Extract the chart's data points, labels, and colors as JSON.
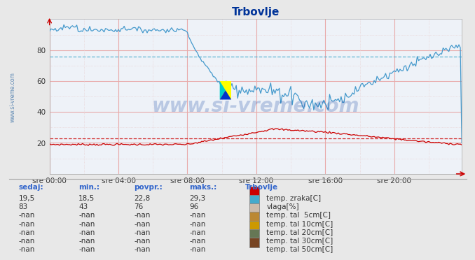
{
  "title": "Trbovlje",
  "bg_color": "#e8e8e8",
  "plot_bg_color": "#eef2f8",
  "ylim": [
    0,
    100
  ],
  "yticks": [
    20,
    40,
    60,
    80
  ],
  "tick_labels_x": [
    "sre 00:00",
    "sre 04:00",
    "sre 08:00",
    "sre 12:00",
    "sre 16:00",
    "sre 20:00"
  ],
  "grid_color_solid": "#e8aaaa",
  "grid_color_dot": "#e8cccc",
  "temp_color": "#cc0000",
  "vlaga_color": "#4499cc",
  "temp_avg": 22.8,
  "vlaga_avg": 76,
  "watermark": "www.si-vreme.com",
  "sidebar_text": "www.si-vreme.com",
  "table_headers": [
    "sedaj:",
    "min.:",
    "povpr.:",
    "maks.:"
  ],
  "table_col1": [
    "19,5",
    "83",
    "-nan",
    "-nan",
    "-nan",
    "-nan",
    "-nan"
  ],
  "table_col2": [
    "18,5",
    "43",
    "-nan",
    "-nan",
    "-nan",
    "-nan",
    "-nan"
  ],
  "table_col3": [
    "22,8",
    "76",
    "-nan",
    "-nan",
    "-nan",
    "-nan",
    "-nan"
  ],
  "table_col4": [
    "29,3",
    "96",
    "-nan",
    "-nan",
    "-nan",
    "-nan",
    "-nan"
  ],
  "legend_title": "Trbovlje",
  "legend_items": [
    {
      "label": "temp. zraka[C]",
      "color": "#cc0000"
    },
    {
      "label": "vlaga[%]",
      "color": "#44aacc"
    },
    {
      "label": "temp. tal  5cm[C]",
      "color": "#ccbbaa"
    },
    {
      "label": "temp. tal 10cm[C]",
      "color": "#bb8833"
    },
    {
      "label": "temp. tal 20cm[C]",
      "color": "#cc9900"
    },
    {
      "label": "temp. tal 30cm[C]",
      "color": "#667755"
    },
    {
      "label": "temp. tal 50cm[C]",
      "color": "#774422"
    }
  ]
}
